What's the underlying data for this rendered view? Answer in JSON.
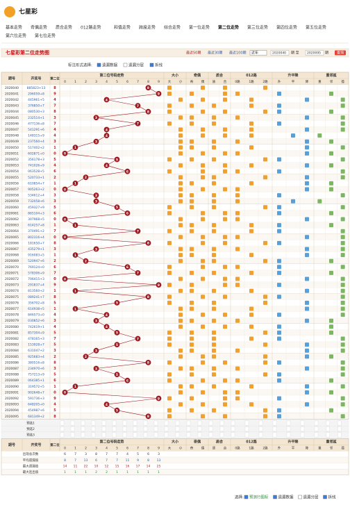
{
  "header": {
    "logo": "七星彩"
  },
  "nav": [
    "基本走势",
    "奇偶走势",
    "质合走势",
    "012路走势",
    "和值走势",
    "跨度走势",
    "综合走势",
    "第一位走势",
    "第二位走势",
    "第三位走势",
    "第四位走势",
    "第五位走势",
    "第六位走势",
    "第七位走势"
  ],
  "nav_active": 8,
  "title": "七星彩第二位走势图",
  "filters": {
    "recent": [
      "最近50期",
      "最近30期",
      "最近100期"
    ],
    "select": "近年",
    "from": "2020040",
    "to_label": "期 至",
    "to": "2020095",
    "unit": "期",
    "button": "查询",
    "mark_label": "标注形式选择:",
    "options": [
      "遗漏数据",
      "遗漏分层",
      "拆线"
    ]
  },
  "table": {
    "columns": {
      "issue": "期号",
      "number": "开奖号",
      "digit": "第二位"
    },
    "groups": [
      {
        "title": "第二位号码走势",
        "cols": [
          "0",
          "1",
          "2",
          "3",
          "4",
          "5",
          "6",
          "7",
          "8",
          "9"
        ]
      },
      {
        "title": "大小",
        "cols": [
          "大",
          "小"
        ]
      },
      {
        "title": "奇偶",
        "cols": [
          "奇",
          "偶"
        ]
      },
      {
        "title": "质合",
        "cols": [
          "质",
          "合"
        ]
      },
      {
        "title": "012路",
        "cols": [
          "0路",
          "1路",
          "2路"
        ]
      },
      {
        "title": "升平降",
        "cols": [
          "升",
          "平",
          "降"
        ]
      },
      {
        "title": "重邻孤",
        "cols": [
          "重",
          "邻",
          "孤"
        ]
      }
    ],
    "rows": [
      [
        "2020040",
        "885823+13",
        8
      ],
      [
        "2020041",
        "296059+8",
        9
      ],
      [
        "2020042",
        "445961+5",
        4
      ],
      [
        "2020043",
        "376850+7",
        7
      ],
      [
        "2020044",
        "080530+3",
        8
      ],
      [
        "2020045",
        "232514+1",
        3
      ],
      [
        "2020046",
        "477136+8",
        7
      ],
      [
        "2020047",
        "541291+6",
        4
      ],
      [
        "2020048",
        "148315+9",
        4
      ],
      [
        "2020049",
        "237560+4",
        3
      ],
      [
        "2020050",
        "517402+2",
        1
      ],
      [
        "2020051",
        "602871+0",
        0
      ],
      [
        "2020052",
        "356178+3",
        5
      ],
      [
        "2020053",
        "741026+9",
        4
      ],
      [
        "2020054",
        "063528+5",
        6
      ],
      [
        "2020055",
        "520733+1",
        2
      ],
      [
        "2020056",
        "610854+7",
        1
      ],
      [
        "2020057",
        "905263+2",
        0
      ],
      [
        "2020058",
        "534612+4",
        3
      ],
      [
        "2020059",
        "732058+6",
        3
      ],
      [
        "2020060",
        "459327+9",
        5
      ],
      [
        "2020061",
        "865104+3",
        6
      ],
      [
        "2020062",
        "307968+5",
        0
      ],
      [
        "2020063",
        "614257+8",
        1
      ],
      [
        "2020064",
        "370491+2",
        7
      ],
      [
        "2020065",
        "802316+4",
        0
      ],
      [
        "2020066",
        "181650+7",
        8
      ],
      [
        "2020067",
        "435279+1",
        3
      ],
      [
        "2020068",
        "916083+5",
        1
      ],
      [
        "2020069",
        "520947+6",
        2
      ],
      [
        "2020070",
        "769124+0",
        6
      ],
      [
        "2020071",
        "578306+9",
        7
      ],
      [
        "2020072",
        "706415+3",
        0
      ],
      [
        "2020073",
        "291837+4",
        9
      ],
      [
        "2020074",
        "813560+2",
        1
      ],
      [
        "2020075",
        "089241+7",
        8
      ],
      [
        "2020076",
        "356702+8",
        5
      ],
      [
        "2020077",
        "614938+5",
        1
      ],
      [
        "2020078",
        "846573+0",
        4
      ],
      [
        "2020079",
        "030852+6",
        3
      ],
      [
        "2020080",
        "742619+1",
        4
      ],
      [
        "2020081",
        "857304+9",
        5
      ],
      [
        "2020082",
        "478165+3",
        7
      ],
      [
        "2020083",
        "153928+7",
        5
      ],
      [
        "2020084",
        "631047+2",
        3
      ],
      [
        "2020085",
        "925683+4",
        2
      ],
      [
        "2020086",
        "380516+8",
        8
      ],
      [
        "2020087",
        "234970+6",
        3
      ],
      [
        "2020088",
        "757213+9",
        5
      ],
      [
        "2020089",
        "064385+1",
        6
      ],
      [
        "2020090",
        "319572+5",
        1
      ],
      [
        "2020091",
        "902648+7",
        0
      ],
      [
        "2020092",
        "591736+3",
        9
      ],
      [
        "2020093",
        "648205+0",
        4
      ],
      [
        "2020094",
        "454987+6",
        5
      ],
      [
        "2020095",
        "681349+2",
        8
      ]
    ],
    "predict": [
      "预选1",
      "预选2",
      "预选3"
    ],
    "stats": [
      {
        "label": "出现总次数",
        "values": [
          6,
          7,
          3,
          8,
          7,
          7,
          4,
          5,
          6,
          3
        ]
      },
      {
        "label": "平均遗漏值",
        "values": [
          8,
          7,
          13,
          6,
          7,
          7,
          11,
          9,
          8,
          13
        ]
      },
      {
        "label": "最大遗漏值",
        "values": [
          14,
          11,
          22,
          10,
          12,
          15,
          16,
          17,
          14,
          25
        ]
      },
      {
        "label": "最大连出值",
        "values": [
          1,
          1,
          1,
          2,
          2,
          1,
          1,
          1,
          1,
          1
        ]
      }
    ]
  },
  "footer": {
    "label": "选择:",
    "options": [
      "预测行图标",
      "遗漏数据",
      "遗漏分层",
      "拆线"
    ]
  }
}
